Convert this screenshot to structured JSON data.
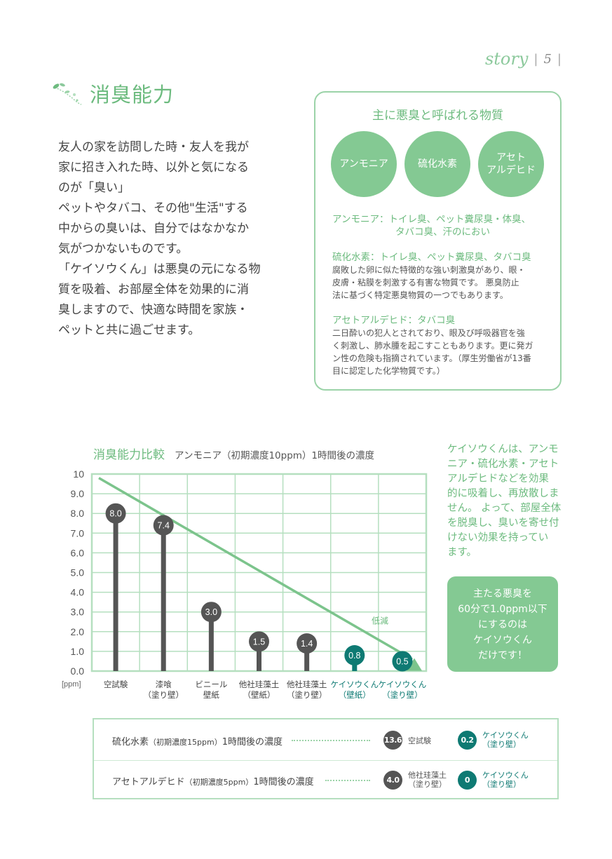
{
  "header": {
    "story": "story",
    "separator": "|",
    "page_number": "5"
  },
  "section": {
    "title": "消臭能力"
  },
  "intro": {
    "lines": [
      "友人の家を訪問した時・友人を我が",
      "家に招き入れた時、以外と気になる",
      "のが「臭い」",
      "ペットやタバコ、その他\"生活\"する",
      "中からの臭いは、自分ではなかなか",
      "気がつかないものです。",
      "「ケイソウくん」は悪臭の元になる物",
      "質を吸着、お部屋全体を効果的に消",
      "臭しますので、快適な時間を家族・",
      "ペットと共に過ごせます。"
    ]
  },
  "substances": {
    "title": "主に悪臭と呼ばれる物質",
    "circles": [
      {
        "line1": "アンモニア",
        "line2": ""
      },
      {
        "line1": "硫化水素",
        "line2": ""
      },
      {
        "line1": "アセト",
        "line2": "アルデヒド"
      }
    ],
    "ammonia": {
      "heading": "アンモニア：トイレ臭、ペット糞尿臭・体臭、",
      "heading2": "タバコ臭、汗のにおい"
    },
    "hydrogen_sulfide": {
      "heading": "硫化水素：トイレ臭、ペット糞尿臭、タバコ臭",
      "body": [
        "腐敗した卵に似た特徴的な強い刺激臭があり、眼・",
        "皮膚・粘膜を刺激する有害な物質です。 悪臭防止",
        "法に基づく特定悪臭物質の一つでもあります。"
      ]
    },
    "acetaldehyde": {
      "heading": "アセトアルデヒド：タバコ臭",
      "body": [
        "二日酔いの犯人とされており、眼及び呼吸器官を強",
        "く刺激し、肺水腫を起こすこともあります。更に発ガ",
        "ン性の危険も指摘されています。（厚生労働省が13番",
        "目に認定した化学物質です。）"
      ]
    }
  },
  "chart_title": {
    "main": "消臭能力比較",
    "sub": "アンモニア（初期濃度10ppm）1時間後の濃度"
  },
  "chart_data": {
    "type": "bar",
    "title": "消臭能力比較",
    "subtitle": "アンモニア（初期濃度10ppm）1時間後の濃度",
    "unit": "[ppm]",
    "ylim": [
      0,
      10
    ],
    "yticks": [
      "0.0",
      "1.0",
      "2.0",
      "3.0",
      "4.0",
      "5.0",
      "6.0",
      "7.0",
      "8.0",
      "9.0",
      "10"
    ],
    "categories": [
      {
        "line1": "空試験",
        "line2": ""
      },
      {
        "line1": "漆喰",
        "line2": "（塗り壁）"
      },
      {
        "line1": "ビニール",
        "line2": "壁紙"
      },
      {
        "line1": "他社珪藻土",
        "line2": "（壁紙）"
      },
      {
        "line1": "他社珪藻土",
        "line2": "（塗り壁）"
      },
      {
        "line1": "ケイソウくん",
        "line2": "（壁紙）"
      },
      {
        "line1": "ケイソウくん",
        "line2": "（塗り壁）"
      }
    ],
    "values": [
      8.0,
      7.4,
      3.0,
      1.5,
      1.4,
      0.8,
      0.5
    ],
    "value_labels": [
      "8.0",
      "7.4",
      "3.0",
      "1.5",
      "1.4",
      "0.8",
      "0.5"
    ],
    "highlight": [
      false,
      false,
      false,
      false,
      false,
      true,
      true
    ],
    "trend_line": {
      "from": 9.8,
      "to": 0.6
    },
    "annotation": "低減",
    "grid": true,
    "colors": {
      "bar": "#555555",
      "highlight": "#0e7a73",
      "grid": "#b5dfbf",
      "trend": "#7cc48c"
    }
  },
  "side_text": {
    "lines": [
      "ケイソウくんは、アンモ",
      "ニア・硫化水素・アセト",
      "アルデヒドなどを効果",
      "的に吸着し、再放散しま",
      "せん。 よって、部屋全体",
      "を脱臭し、臭いを寄せ付",
      "けない効果を持ってい",
      "ます。"
    ]
  },
  "callout": {
    "lines": [
      "主たる悪臭を",
      "60分で1.0ppm以下",
      "にするのは",
      "ケイソウくん",
      "だけです！"
    ]
  },
  "comparison": [
    {
      "label_main": "硫化水素",
      "label_paren": "（初期濃度15ppm）",
      "label_tail": "1時間後の濃度",
      "badge1_value": "13.6",
      "badge1_label1": "空試験",
      "badge1_label2": "",
      "badge2_value": "0.2",
      "badge2_label1": "ケイソウくん",
      "badge2_label2": "（塗り壁）"
    },
    {
      "label_main": "アセトアルデヒド",
      "label_paren": "（初期濃度5ppm）",
      "label_tail": "1時間後の濃度",
      "badge1_value": "4.0",
      "badge1_label1": "他社珪藻土",
      "badge1_label2": "（塗り壁）",
      "badge2_value": "0",
      "badge2_label1": "ケイソウくん",
      "badge2_label2": "（塗り壁）"
    }
  ],
  "colors": {
    "accent": "#6dbb7f",
    "circle": "#84c993",
    "teal": "#0e7a73"
  }
}
